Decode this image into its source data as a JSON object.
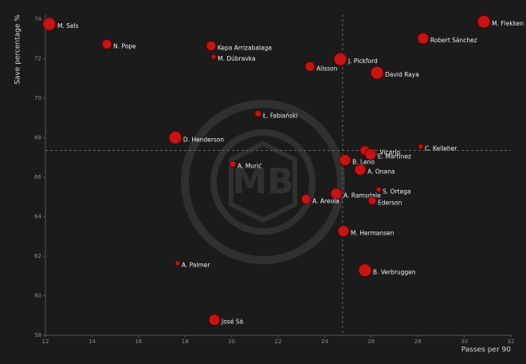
{
  "chart_data": {
    "type": "scatter",
    "x_label": "Passes per 90",
    "y_label": "Save percentage %",
    "labels": [
      "M. Sels",
      "N. Pope",
      "Kepa Arrizabalaga",
      "M. Dúbravka",
      "J. Pickford",
      "Alisson",
      "David Raya",
      "M. Flekken",
      "Robert Sánchez",
      "Ł. Fabiański",
      "D. Henderson",
      "C. Kelleher",
      "G. Vicario",
      "E. Martínez",
      "B. Leno",
      "A. Onana",
      "A. Murić",
      "S. Ortega",
      "A. Ramsdale",
      "A. Areola",
      "Ederson",
      "M. Hermansen",
      "A. Palmer",
      "B. Verbruggen",
      "José Sá"
    ],
    "x": [
      12.17,
      14.64,
      19.12,
      19.23,
      24.67,
      23.37,
      26.25,
      30.84,
      28.23,
      21.14,
      17.58,
      28.13,
      25.73,
      25.97,
      24.88,
      25.53,
      20.05,
      26.32,
      24.5,
      23.2,
      26.04,
      24.81,
      17.68,
      25.73,
      19.26
    ],
    "values": [
      73.76,
      72.74,
      72.66,
      72.1,
      71.98,
      71.61,
      71.29,
      73.88,
      73.03,
      69.22,
      68.01,
      67.56,
      67.36,
      67.16,
      66.87,
      66.39,
      66.67,
      65.38,
      65.17,
      64.89,
      64.81,
      63.27,
      61.65,
      61.29,
      58.78
    ],
    "sizes": [
      8,
      6,
      6,
      3,
      8,
      6,
      8,
      8,
      7,
      4,
      8,
      3,
      6,
      7,
      7,
      7,
      4,
      3,
      7,
      6,
      5,
      7,
      3,
      8,
      7
    ],
    "color": "#c41414",
    "reference_lines": {
      "x": 24.77,
      "y": 67.36
    },
    "xlim": [
      12,
      32
    ],
    "xticks": [
      12,
      14,
      16,
      18,
      20,
      22,
      24,
      26,
      28,
      30,
      32
    ],
    "ylim": [
      58,
      74.25
    ],
    "yticks": [
      58,
      60,
      62,
      64,
      66,
      68,
      70,
      72,
      74
    ]
  }
}
